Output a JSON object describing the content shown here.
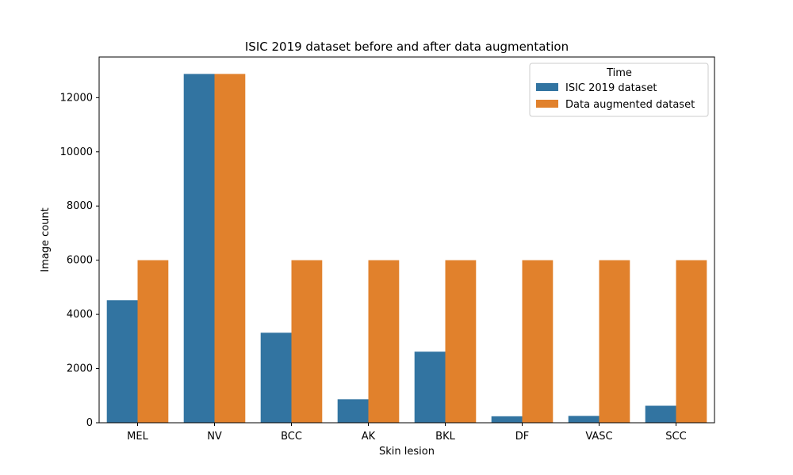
{
  "chart_data": {
    "type": "bar",
    "title": "ISIC 2019 dataset before and after data augmentation",
    "xlabel": "Skin lesion",
    "ylabel": "Image count",
    "categories": [
      "MEL",
      "NV",
      "BCC",
      "AK",
      "BKL",
      "DF",
      "VASC",
      "SCC"
    ],
    "series": [
      {
        "name": "ISIC 2019 dataset",
        "color": "#3274a1",
        "values": [
          4522,
          12875,
          3323,
          867,
          2624,
          239,
          253,
          628
        ]
      },
      {
        "name": "Data augmented dataset",
        "color": "#e1812c",
        "values": [
          6000,
          12875,
          6000,
          6000,
          6000,
          6000,
          6000,
          6000
        ]
      }
    ],
    "ylim": [
      0,
      13500
    ],
    "yticks": [
      0,
      2000,
      4000,
      6000,
      8000,
      10000,
      12000
    ],
    "grid": false,
    "legend": {
      "title": "Time",
      "placement": "top-right"
    }
  }
}
